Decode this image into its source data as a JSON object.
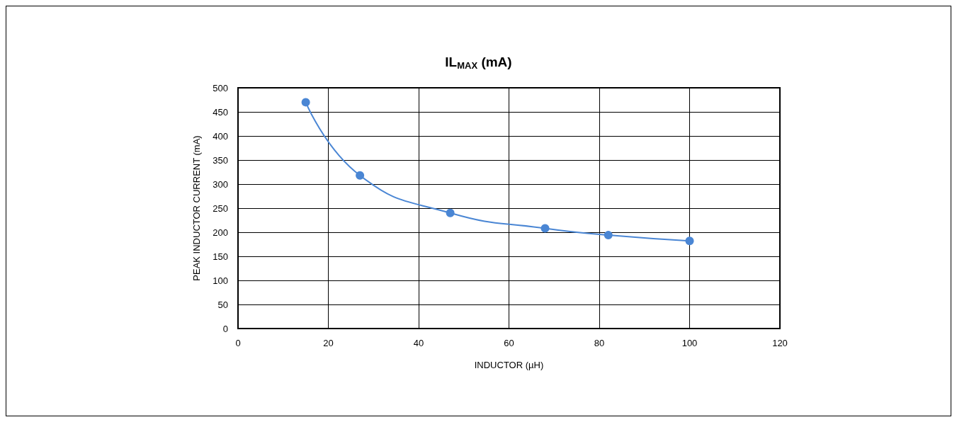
{
  "chart_data": {
    "type": "line",
    "title": "IL$_{MAX}$ (mA)",
    "xlabel": "INDUCTOR (µH)",
    "ylabel": "PEAK INDUCTOR CURRENT (mA)",
    "x": [
      15,
      27,
      47,
      68,
      82,
      100
    ],
    "series": [
      {
        "color": "#4a86d4",
        "values": [
          470,
          318,
          240,
          208,
          194,
          182
        ]
      }
    ],
    "xlim": [
      0,
      120
    ],
    "xticks": [
      0,
      20,
      40,
      60,
      80,
      100,
      120
    ],
    "ylim": [
      0,
      500
    ],
    "yticks": [
      0,
      50,
      100,
      150,
      200,
      250,
      300,
      350,
      400,
      450,
      500
    ],
    "grid": true,
    "marker": "circle",
    "line_style": "solid"
  }
}
